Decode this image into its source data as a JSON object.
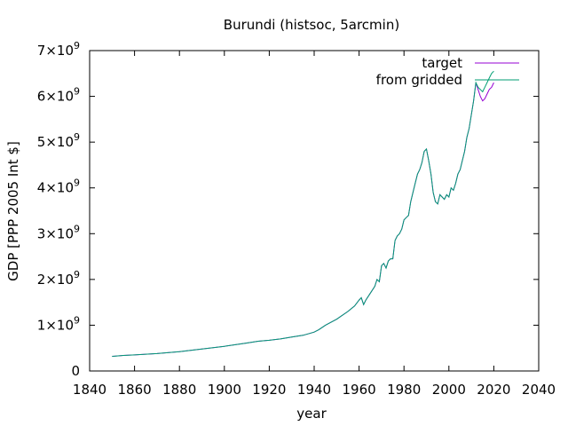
{
  "chart_data": {
    "type": "line",
    "title": "Burundi (histsoc, 5arcmin)",
    "xlabel": "year",
    "ylabel": "GDP [PPP 2005 Int $]",
    "xlim": [
      1840,
      2040
    ],
    "ylim": [
      0,
      7000000000
    ],
    "xticks": [
      1840,
      1860,
      1880,
      1900,
      1920,
      1940,
      1960,
      1980,
      2000,
      2020,
      2040
    ],
    "yticks": [
      {
        "value": 0,
        "base": "0",
        "exp": ""
      },
      {
        "value": 1000000000,
        "base": "1×10",
        "exp": "9"
      },
      {
        "value": 2000000000,
        "base": "2×10",
        "exp": "9"
      },
      {
        "value": 3000000000,
        "base": "3×10",
        "exp": "9"
      },
      {
        "value": 4000000000,
        "base": "4×10",
        "exp": "9"
      },
      {
        "value": 5000000000,
        "base": "5×10",
        "exp": "9"
      },
      {
        "value": 6000000000,
        "base": "6×10",
        "exp": "9"
      },
      {
        "value": 7000000000,
        "base": "7×10",
        "exp": "9"
      }
    ],
    "grid": false,
    "legend_position": "top-right",
    "series": [
      {
        "name": "target",
        "color": "#9400d3",
        "x": [
          1850,
          1855,
          1860,
          1870,
          1880,
          1890,
          1900,
          1910,
          1915,
          1920,
          1925,
          1930,
          1935,
          1938,
          1940,
          1942,
          1945,
          1950,
          1955,
          1958,
          1960,
          1961,
          1962,
          1963,
          1965,
          1967,
          1968,
          1969,
          1970,
          1971,
          1972,
          1973,
          1974,
          1975,
          1976,
          1977,
          1978,
          1979,
          1980,
          1981,
          1982,
          1983,
          1984,
          1985,
          1986,
          1987,
          1988,
          1989,
          1990,
          1991,
          1992,
          1993,
          1994,
          1995,
          1996,
          1997,
          1998,
          1999,
          2000,
          2001,
          2002,
          2003,
          2004,
          2005,
          2006,
          2007,
          2008,
          2009,
          2010,
          2011,
          2012,
          2013,
          2014,
          2015,
          2016,
          2017,
          2018,
          2019,
          2020
        ],
        "values": [
          320000000,
          340000000,
          350000000,
          380000000,
          420000000,
          480000000,
          540000000,
          610000000,
          650000000,
          670000000,
          700000000,
          740000000,
          780000000,
          820000000,
          850000000,
          900000000,
          1000000000,
          1130000000,
          1300000000,
          1420000000,
          1550000000,
          1600000000,
          1450000000,
          1550000000,
          1700000000,
          1850000000,
          2000000000,
          1950000000,
          2300000000,
          2350000000,
          2250000000,
          2400000000,
          2450000000,
          2450000000,
          2850000000,
          2950000000,
          3000000000,
          3100000000,
          3300000000,
          3350000000,
          3400000000,
          3700000000,
          3900000000,
          4100000000,
          4300000000,
          4400000000,
          4550000000,
          4800000000,
          4850000000,
          4600000000,
          4300000000,
          3900000000,
          3700000000,
          3650000000,
          3850000000,
          3800000000,
          3750000000,
          3850000000,
          3800000000,
          4000000000,
          3950000000,
          4100000000,
          4300000000,
          4400000000,
          4600000000,
          4800000000,
          5100000000,
          5300000000,
          5600000000,
          5900000000,
          6300000000,
          6150000000,
          6000000000,
          5900000000,
          5950000000,
          6050000000,
          6150000000,
          6200000000,
          6300000000
        ]
      },
      {
        "name": "from gridded",
        "color": "#009e73",
        "x": [
          1850,
          1855,
          1860,
          1870,
          1880,
          1890,
          1900,
          1910,
          1915,
          1920,
          1925,
          1930,
          1935,
          1938,
          1940,
          1942,
          1945,
          1950,
          1955,
          1958,
          1960,
          1961,
          1962,
          1963,
          1965,
          1967,
          1968,
          1969,
          1970,
          1971,
          1972,
          1973,
          1974,
          1975,
          1976,
          1977,
          1978,
          1979,
          1980,
          1981,
          1982,
          1983,
          1984,
          1985,
          1986,
          1987,
          1988,
          1989,
          1990,
          1991,
          1992,
          1993,
          1994,
          1995,
          1996,
          1997,
          1998,
          1999,
          2000,
          2001,
          2002,
          2003,
          2004,
          2005,
          2006,
          2007,
          2008,
          2009,
          2010,
          2011,
          2012,
          2013,
          2014,
          2015,
          2016,
          2017,
          2018,
          2019,
          2020
        ],
        "values": [
          320000000,
          340000000,
          350000000,
          380000000,
          420000000,
          480000000,
          540000000,
          610000000,
          650000000,
          670000000,
          700000000,
          740000000,
          780000000,
          820000000,
          850000000,
          900000000,
          1000000000,
          1130000000,
          1300000000,
          1420000000,
          1550000000,
          1600000000,
          1450000000,
          1550000000,
          1700000000,
          1850000000,
          2000000000,
          1950000000,
          2300000000,
          2350000000,
          2250000000,
          2400000000,
          2450000000,
          2450000000,
          2850000000,
          2950000000,
          3000000000,
          3100000000,
          3300000000,
          3350000000,
          3400000000,
          3700000000,
          3900000000,
          4100000000,
          4300000000,
          4400000000,
          4550000000,
          4800000000,
          4850000000,
          4600000000,
          4300000000,
          3900000000,
          3700000000,
          3650000000,
          3850000000,
          3800000000,
          3750000000,
          3850000000,
          3800000000,
          4000000000,
          3950000000,
          4100000000,
          4300000000,
          4400000000,
          4600000000,
          4800000000,
          5100000000,
          5300000000,
          5600000000,
          5900000000,
          6300000000,
          6200000000,
          6150000000,
          6100000000,
          6200000000,
          6300000000,
          6400000000,
          6500000000,
          6550000000
        ]
      }
    ]
  }
}
